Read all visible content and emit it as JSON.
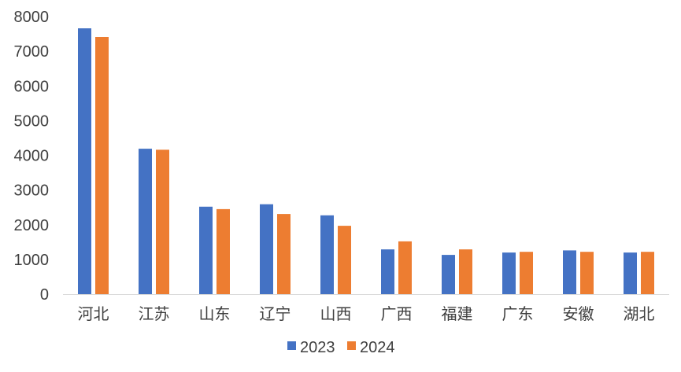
{
  "chart_data": {
    "type": "bar",
    "title": "",
    "xlabel": "",
    "ylabel": "",
    "ylim": [
      0,
      8000
    ],
    "yticks": [
      0,
      1000,
      2000,
      3000,
      4000,
      5000,
      6000,
      7000,
      8000
    ],
    "grid": false,
    "legend_position": "bottom",
    "categories": [
      "河北",
      "江苏",
      "山东",
      "辽宁",
      "山西",
      "广西",
      "福建",
      "广东",
      "安徽",
      "湖北"
    ],
    "series": [
      {
        "name": "2023",
        "color": "#4472C4",
        "values": [
          7660,
          4190,
          2520,
          2590,
          2270,
          1290,
          1130,
          1200,
          1260,
          1200
        ]
      },
      {
        "name": "2024",
        "color": "#ED7D31",
        "values": [
          7410,
          4160,
          2450,
          2310,
          1970,
          1520,
          1290,
          1220,
          1220,
          1220
        ]
      }
    ]
  }
}
